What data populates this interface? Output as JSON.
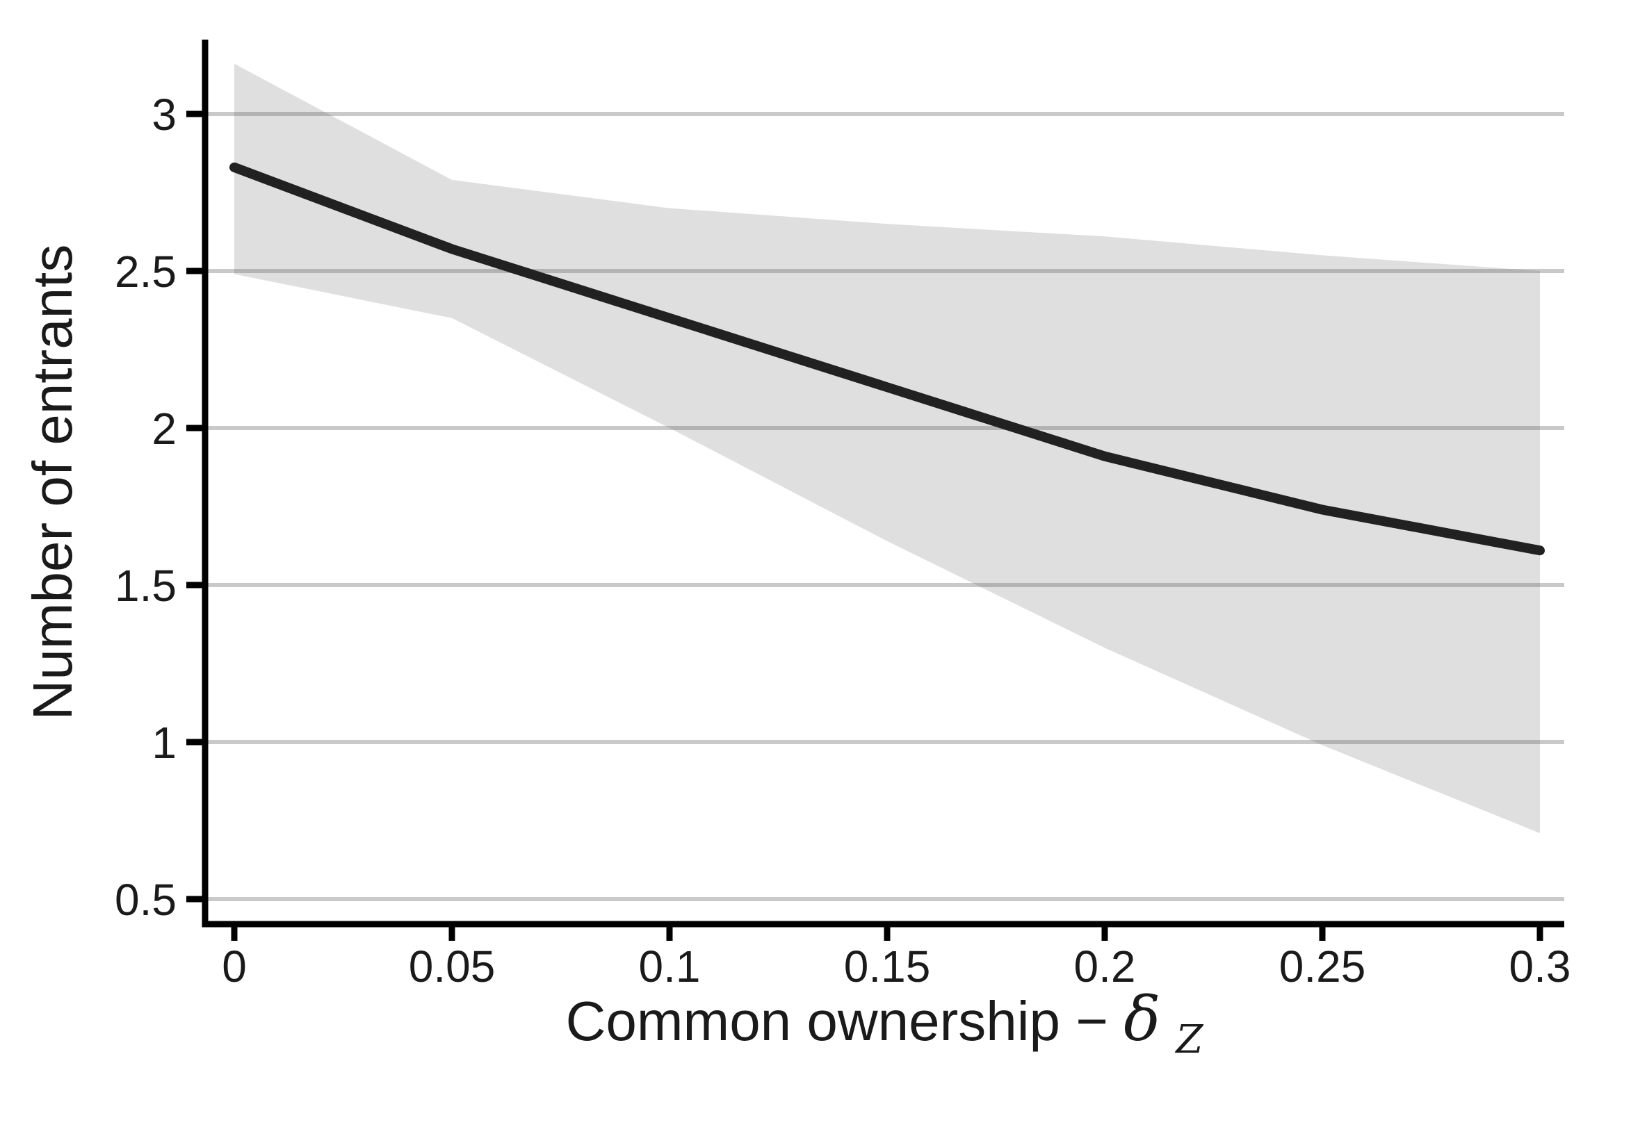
{
  "figure": {
    "background": "#ffffff"
  },
  "labels": {
    "ylabel": "Number of entrants",
    "xlabel_prefix": "Common ownership − ",
    "xlabel_symbol": "δ",
    "xlabel_subscript": "Z"
  },
  "colors": {
    "mean_line": "#212121",
    "confidence_band": "#dfdfdf",
    "gridline": "rgba(90,90,95,0.33)",
    "axis": "#000000",
    "text": "#1a1a1a"
  },
  "chart_data": {
    "type": "line",
    "title": "",
    "xlabel": "Common ownership − δ_Z",
    "ylabel": "Number of entrants",
    "x": [
      0,
      0.05,
      0.1,
      0.15,
      0.2,
      0.25,
      0.3
    ],
    "series": [
      {
        "name": "Predicted number of entrants",
        "values": [
          2.83,
          2.57,
          2.35,
          2.13,
          1.91,
          1.74,
          1.61
        ]
      },
      {
        "name": "Confidence interval upper bound",
        "values": [
          3.16,
          2.79,
          2.7,
          2.65,
          2.61,
          2.55,
          2.5
        ]
      },
      {
        "name": "Confidence interval lower bound",
        "values": [
          2.49,
          2.35,
          2.0,
          1.64,
          1.3,
          0.99,
          0.71
        ]
      }
    ],
    "band": {
      "upper_series": 1,
      "lower_series": 2,
      "mean_series": 0
    },
    "x_ticks": {
      "values": [
        0,
        0.05,
        0.1,
        0.15,
        0.2,
        0.25,
        0.3
      ],
      "labels": [
        "0",
        "0.05",
        "0.1",
        "0.15",
        "0.2",
        "0.25",
        "0.3"
      ]
    },
    "y_ticks": {
      "values": [
        3,
        2.5,
        2,
        1.5,
        1,
        0.5
      ],
      "labels": [
        "3",
        "2.5",
        "2",
        "1.5",
        "1",
        "0.5"
      ]
    },
    "xlim": [
      0,
      0.3
    ],
    "ylim": [
      0.42,
      3.24
    ],
    "grid": "horizontal-only",
    "legend_position": "none"
  }
}
